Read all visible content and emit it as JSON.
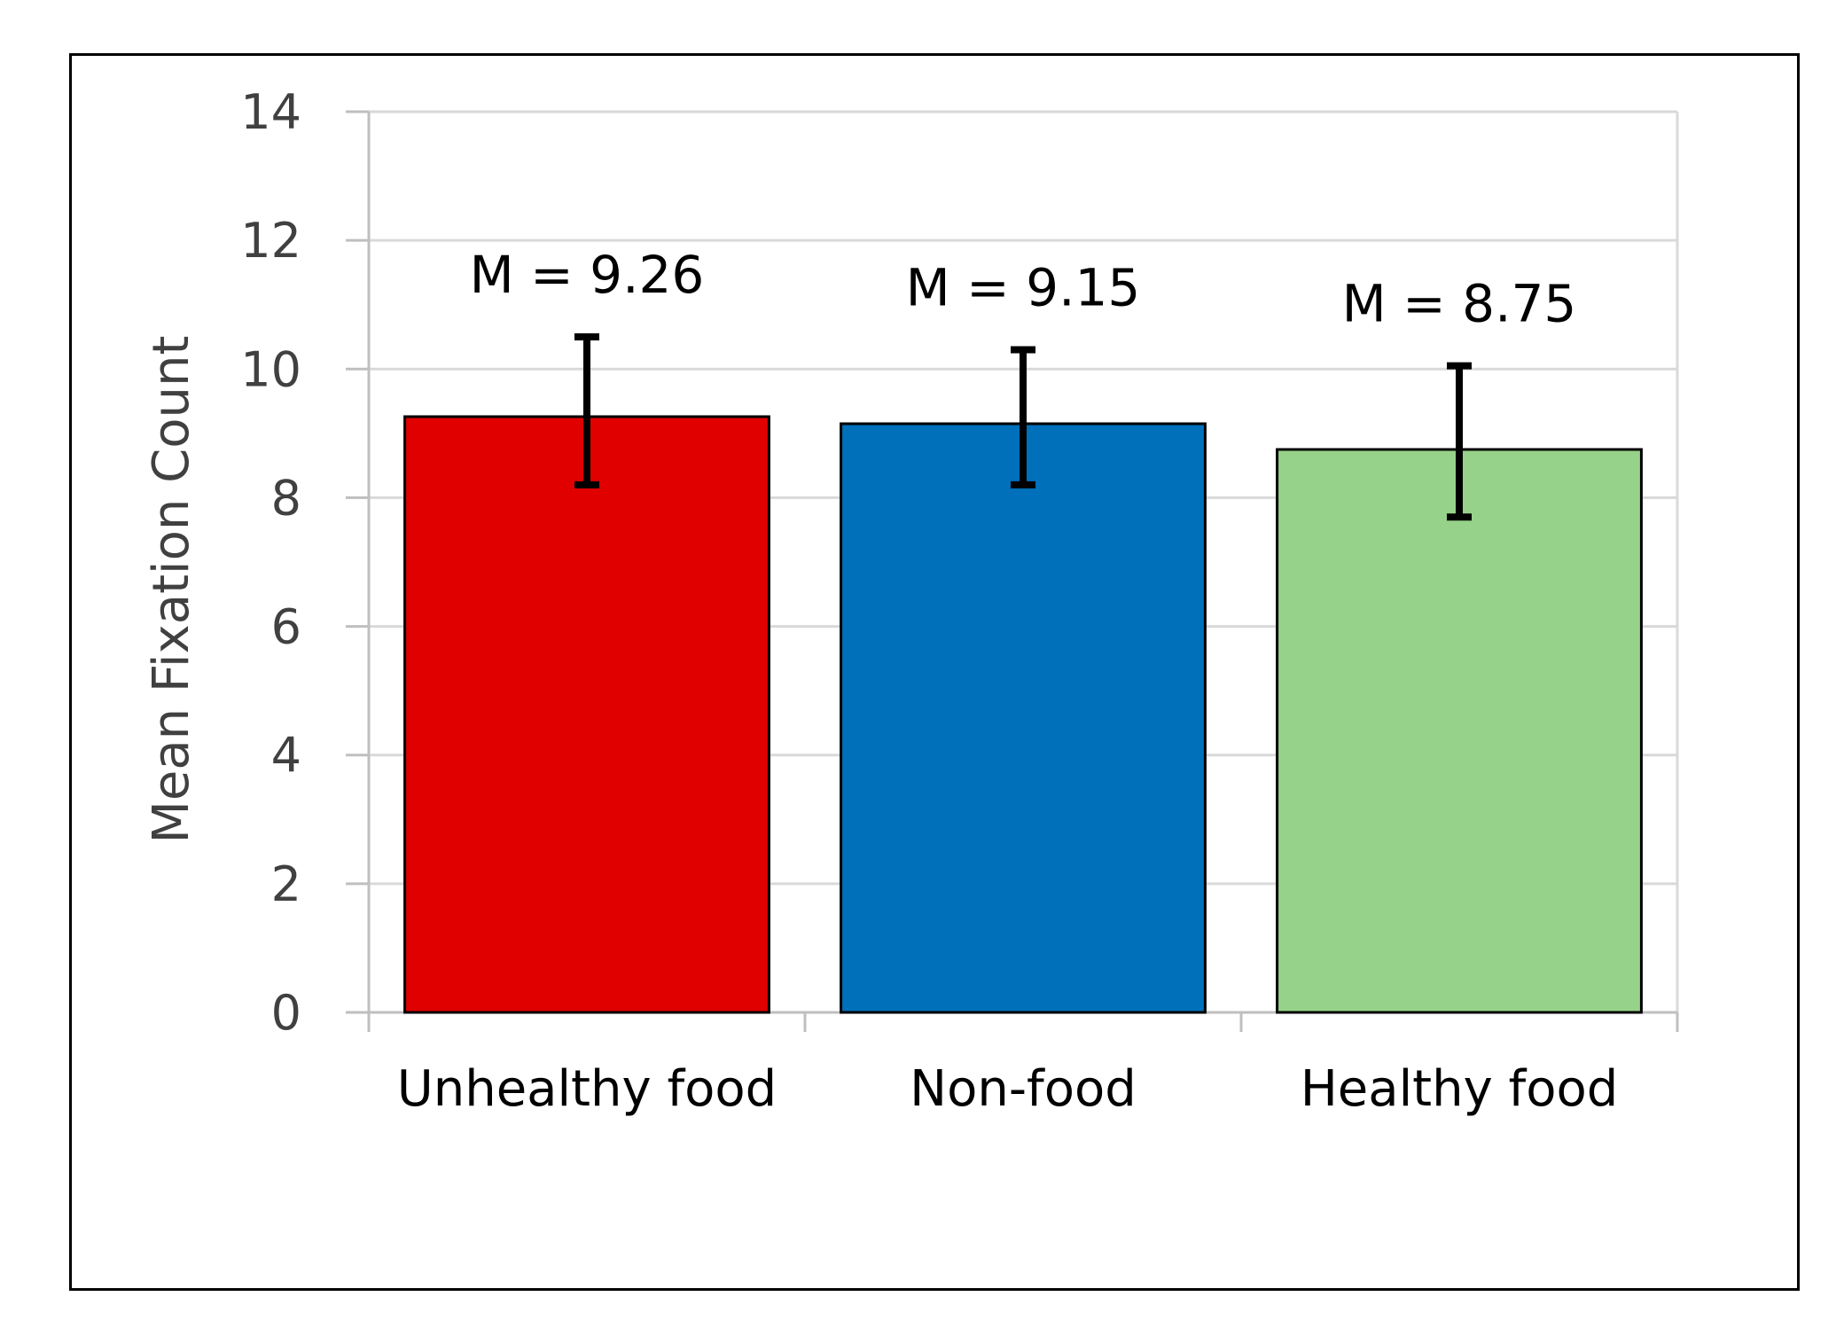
{
  "chart_data": {
    "type": "bar",
    "categories": [
      "Unhealthy food",
      "Non-food",
      "Healthy food"
    ],
    "values": [
      9.26,
      9.15,
      8.75
    ],
    "error_bars": [
      {
        "low": 8.2,
        "high": 10.5
      },
      {
        "low": 8.2,
        "high": 10.3
      },
      {
        "low": 7.7,
        "high": 10.05
      }
    ],
    "annotations": [
      "M = 9.26",
      "M = 9.15",
      "M = 8.75"
    ],
    "colors": [
      "#e00000",
      "#0070bb",
      "#96d289"
    ],
    "title": "",
    "xlabel": "",
    "ylabel": "Mean Fixation Count",
    "ylim": [
      0,
      14
    ],
    "yticks": [
      "0",
      "2",
      "4",
      "6",
      "8",
      "10",
      "12",
      "14"
    ],
    "grid": true,
    "legend": "none"
  }
}
